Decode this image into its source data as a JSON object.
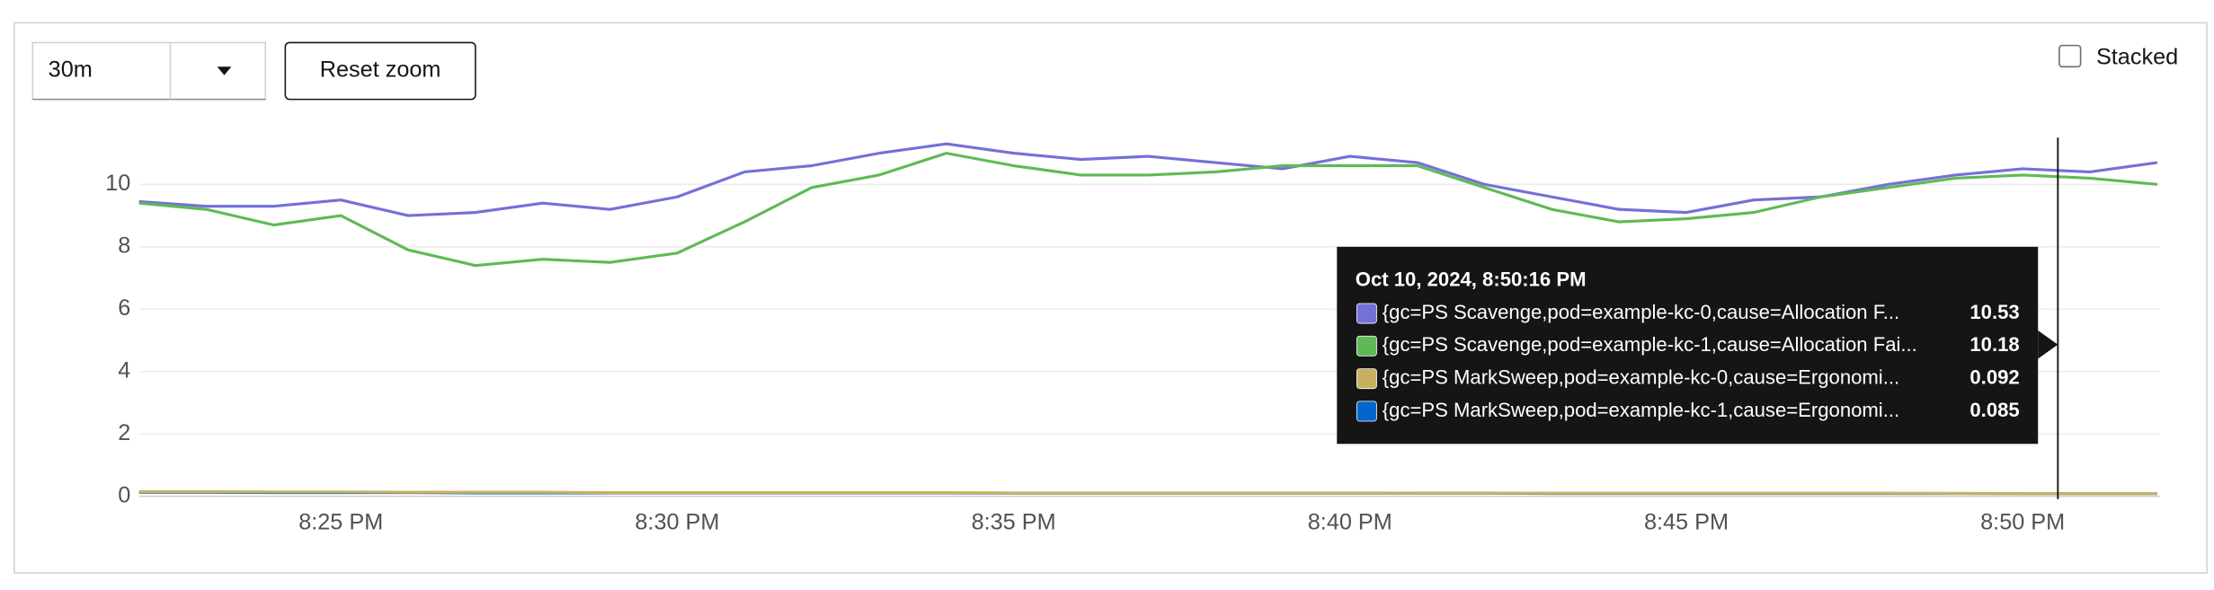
{
  "controls": {
    "range": "30m",
    "reset": "Reset zoom",
    "stacked": "Stacked"
  },
  "tooltip": {
    "time": "Oct 10, 2024, 8:50:16 PM",
    "values": [
      10.53,
      10.18,
      0.092,
      0.085
    ]
  },
  "chart_data": {
    "type": "line",
    "x": [
      "8:22 PM",
      "8:23 PM",
      "8:24 PM",
      "8:25 PM",
      "8:26 PM",
      "8:27 PM",
      "8:28 PM",
      "8:29 PM",
      "8:30 PM",
      "8:31 PM",
      "8:32 PM",
      "8:33 PM",
      "8:34 PM",
      "8:35 PM",
      "8:36 PM",
      "8:37 PM",
      "8:38 PM",
      "8:39 PM",
      "8:40 PM",
      "8:41 PM",
      "8:42 PM",
      "8:43 PM",
      "8:44 PM",
      "8:45 PM",
      "8:46 PM",
      "8:47 PM",
      "8:48 PM",
      "8:49 PM",
      "8:50 PM",
      "8:51 PM",
      "8:52 PM"
    ],
    "xticks": [
      "8:25 PM",
      "8:30 PM",
      "8:35 PM",
      "8:40 PM",
      "8:45 PM",
      "8:50 PM"
    ],
    "ylim": [
      0,
      11.5
    ],
    "yticks": [
      0,
      2,
      4,
      6,
      8,
      10
    ],
    "grid": true,
    "series": [
      {
        "name": "{gc=PS Scavenge,pod=example-kc-0,cause=Allocation F...",
        "color": "#7470d8",
        "values": [
          9.45,
          9.3,
          9.3,
          9.5,
          9.0,
          9.1,
          9.4,
          9.2,
          9.6,
          10.4,
          10.6,
          11.0,
          11.3,
          11.0,
          10.8,
          10.9,
          10.7,
          10.5,
          10.9,
          10.7,
          10.0,
          9.6,
          9.2,
          9.1,
          9.5,
          9.6,
          10.0,
          10.3,
          10.5,
          10.4,
          10.7
        ]
      },
      {
        "name": "{gc=PS Scavenge,pod=example-kc-1,cause=Allocation Fai...",
        "color": "#5fba55",
        "values": [
          9.4,
          9.2,
          8.7,
          9.0,
          7.9,
          7.4,
          7.6,
          7.5,
          7.8,
          8.8,
          9.9,
          10.3,
          11.0,
          10.6,
          10.3,
          10.3,
          10.4,
          10.6,
          10.6,
          10.6,
          9.9,
          9.2,
          8.8,
          8.9,
          9.1,
          9.6,
          9.9,
          10.2,
          10.3,
          10.2,
          10.0
        ]
      },
      {
        "name": "{gc=PS MarkSweep,pod=example-kc-1,cause=Ergonomi...",
        "color": "#0066cc",
        "values": [
          0.13,
          0.13,
          0.12,
          0.12,
          0.12,
          0.11,
          0.11,
          0.11,
          0.11,
          0.11,
          0.11,
          0.11,
          0.11,
          0.1,
          0.1,
          0.1,
          0.1,
          0.1,
          0.1,
          0.1,
          0.1,
          0.09,
          0.09,
          0.09,
          0.09,
          0.09,
          0.09,
          0.09,
          0.085,
          0.085,
          0.085
        ]
      },
      {
        "name": "{gc=PS MarkSweep,pod=example-kc-0,cause=Ergonomi...",
        "color": "#c9b060",
        "values": [
          0.15,
          0.15,
          0.14,
          0.14,
          0.13,
          0.13,
          0.13,
          0.12,
          0.12,
          0.12,
          0.12,
          0.12,
          0.12,
          0.11,
          0.11,
          0.11,
          0.11,
          0.11,
          0.11,
          0.1,
          0.1,
          0.1,
          0.1,
          0.1,
          0.1,
          0.1,
          0.1,
          0.095,
          0.092,
          0.092,
          0.092
        ]
      }
    ]
  }
}
